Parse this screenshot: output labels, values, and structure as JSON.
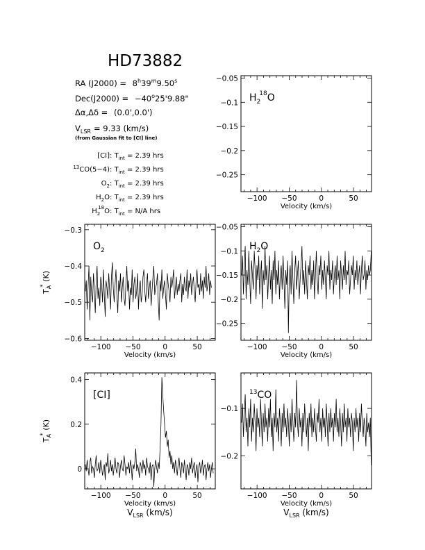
{
  "header": {
    "title": "HD73882",
    "ra_label": "RA (J2000) =",
    "ra_h": "8",
    "ra_m": "39",
    "ra_s": "9.50",
    "dec_label": "Dec(J2000) =",
    "dec_deg": "−40",
    "dec_arcmin": "25'",
    "dec_arcsec": "9.88\"",
    "offset_label": "Δα,Δδ =",
    "offset_value": "(0.0',0.0')",
    "vlsr_label": "V",
    "vlsr_sub": "LSR",
    "vlsr_value": "= 9.33 (km/s)",
    "vlsr_note": "(from Gaussian fit to [CI] line)",
    "tint_label": "T",
    "tint_sub": "int",
    "integrations": [
      {
        "prefix": "",
        "line": "[CI]",
        "sup": "",
        "value": "= 2.39 hrs"
      },
      {
        "prefix": "13",
        "line": "CO(5−4)",
        "sup": "",
        "value": "= 2.39 hrs"
      },
      {
        "prefix": "",
        "line": "O",
        "sub": "2",
        "value": "= 2.39 hrs"
      },
      {
        "prefix": "",
        "line": "H",
        "sub": "2",
        "post": "O",
        "value": "= 2.39 hrs"
      },
      {
        "prefix": "",
        "line": "H",
        "sub": "2",
        "sup": "18",
        "post": "O",
        "value": "= N/A hrs"
      }
    ]
  },
  "axis_text": {
    "velocity": "Velocity (km/s)",
    "vlsr_main": "V",
    "vlsr_sub": "LSR",
    "vlsr_units": "(km/s)",
    "ta_main": "T",
    "ta_sub": "A",
    "ta_sup": "*",
    "ta_units": "(K)"
  },
  "chart_data": [
    {
      "id": "h218o",
      "type": "line",
      "label_main": "H",
      "label_sub": "2",
      "label_sup": "18",
      "label_post": "O",
      "xlim": [
        -125,
        78
      ],
      "ylim": [
        -0.285,
        -0.045
      ],
      "xticks": [
        -100,
        -50,
        0,
        50
      ],
      "xtick_labels": [
        "−100",
        "−50",
        "0",
        "50"
      ],
      "yticks": [
        -0.05,
        -0.1,
        -0.15,
        -0.2,
        -0.25
      ],
      "ytick_labels": [
        "−0.05",
        "−0.1",
        "−0.15",
        "−0.2",
        "−0.25"
      ],
      "xlabel": "Velocity (km/s)",
      "ylabel": "",
      "series": []
    },
    {
      "id": "o2",
      "type": "line",
      "label_main": "O",
      "label_sub": "2",
      "xlim": [
        -125,
        78
      ],
      "ylim": [
        -0.605,
        -0.285
      ],
      "xticks": [
        -100,
        -50,
        0,
        50
      ],
      "xtick_labels": [
        "−100",
        "−50",
        "0",
        "50"
      ],
      "yticks": [
        -0.3,
        -0.4,
        -0.5,
        -0.6
      ],
      "ytick_labels": [
        "−0.3",
        "−0.4",
        "−0.5",
        "−0.6"
      ],
      "xlabel": "Velocity (km/s)",
      "ylabel": "T_A* (K)",
      "series": [
        {
          "x_start": -124,
          "x_step": 1.4,
          "values": [
            -0.47,
            -0.44,
            -0.52,
            -0.46,
            -0.4,
            -0.55,
            -0.43,
            -0.48,
            -0.5,
            -0.42,
            -0.47,
            -0.53,
            -0.44,
            -0.4,
            -0.49,
            -0.46,
            -0.51,
            -0.43,
            -0.45,
            -0.5,
            -0.41,
            -0.48,
            -0.54,
            -0.44,
            -0.46,
            -0.49,
            -0.42,
            -0.47,
            -0.52,
            -0.43,
            -0.39,
            -0.46,
            -0.5,
            -0.45,
            -0.41,
            -0.48,
            -0.53,
            -0.44,
            -0.47,
            -0.42,
            -0.5,
            -0.46,
            -0.43,
            -0.49,
            -0.51,
            -0.45,
            -0.4,
            -0.47,
            -0.44,
            -0.52,
            -0.46,
            -0.48,
            -0.41,
            -0.5,
            -0.45,
            -0.43,
            -0.49,
            -0.47,
            -0.42,
            -0.52,
            -0.46,
            -0.44,
            -0.5,
            -0.48,
            -0.43,
            -0.41,
            -0.47,
            -0.5,
            -0.45,
            -0.42,
            -0.49,
            -0.46,
            -0.44,
            -0.51,
            -0.47,
            -0.43,
            -0.4,
            -0.48,
            -0.46,
            -0.45,
            -0.42,
            -0.5,
            -0.55,
            -0.44,
            -0.47,
            -0.41,
            -0.49,
            -0.46,
            -0.44,
            -0.48,
            -0.52,
            -0.42,
            -0.45,
            -0.47,
            -0.5,
            -0.43,
            -0.46,
            -0.44,
            -0.41,
            -0.49,
            -0.46,
            -0.43,
            -0.48,
            -0.45,
            -0.47,
            -0.44,
            -0.42,
            -0.5,
            -0.45,
            -0.48,
            -0.43,
            -0.46,
            -0.47,
            -0.41,
            -0.49,
            -0.44,
            -0.46,
            -0.42,
            -0.48,
            -0.45,
            -0.43,
            -0.47,
            -0.5,
            -0.44,
            -0.41,
            -0.46,
            -0.45,
            -0.48,
            -0.42,
            -0.47,
            -0.44,
            -0.49,
            -0.43,
            -0.46,
            -0.4,
            -0.47,
            -0.45,
            -0.42,
            -0.48,
            -0.44,
            -0.46
          ]
        }
      ]
    },
    {
      "id": "h2o",
      "type": "line",
      "label_main": "H",
      "label_sub": "2",
      "label_post": "O",
      "xlim": [
        -125,
        78
      ],
      "ylim": [
        -0.285,
        -0.045
      ],
      "xticks": [
        -100,
        -50,
        0,
        50
      ],
      "xtick_labels": [
        "−100",
        "−50",
        "0",
        "50"
      ],
      "yticks": [
        -0.05,
        -0.1,
        -0.15,
        -0.2,
        -0.25
      ],
      "ytick_labels": [
        "−0.05",
        "−0.1",
        "−0.15",
        "−0.2",
        "−0.25"
      ],
      "xlabel": "Velocity (km/s)",
      "ylabel": "",
      "series": [
        {
          "x_start": -124,
          "x_step": 1.4,
          "values": [
            -0.15,
            -0.11,
            -0.19,
            -0.13,
            -0.09,
            -0.2,
            -0.14,
            -0.17,
            -0.1,
            -0.16,
            -0.21,
            -0.12,
            -0.15,
            -0.18,
            -0.1,
            -0.14,
            -0.2,
            -0.13,
            -0.16,
            -0.11,
            -0.19,
            -0.15,
            -0.12,
            -0.22,
            -0.14,
            -0.17,
            -0.09,
            -0.16,
            -0.13,
            -0.2,
            -0.15,
            -0.11,
            -0.18,
            -0.14,
            -0.21,
            -0.12,
            -0.16,
            -0.1,
            -0.19,
            -0.14,
            -0.17,
            -0.12,
            -0.2,
            -0.15,
            -0.13,
            -0.18,
            -0.11,
            -0.16,
            -0.22,
            -0.14,
            -0.17,
            -0.12,
            -0.27,
            -0.15,
            -0.13,
            -0.19,
            -0.1,
            -0.16,
            -0.21,
            -0.14,
            -0.11,
            -0.18,
            -0.15,
            -0.12,
            -0.2,
            -0.16,
            -0.13,
            -0.09,
            -0.17,
            -0.14,
            -0.19,
            -0.12,
            -0.16,
            -0.2,
            -0.13,
            -0.15,
            -0.11,
            -0.18,
            -0.14,
            -0.17,
            -0.12,
            -0.2,
            -0.15,
            -0.1,
            -0.16,
            -0.19,
            -0.13,
            -0.15,
            -0.11,
            -0.18,
            -0.14,
            -0.17,
            -0.12,
            -0.16,
            -0.2,
            -0.13,
            -0.15,
            -0.1,
            -0.18,
            -0.14,
            -0.16,
            -0.12,
            -0.19,
            -0.15,
            -0.13,
            -0.17,
            -0.11,
            -0.16,
            -0.14,
            -0.2,
            -0.12,
            -0.15,
            -0.18,
            -0.13,
            -0.16,
            -0.1,
            -0.17,
            -0.14,
            -0.15,
            -0.12,
            -0.19,
            -0.16,
            -0.13,
            -0.15,
            -0.11,
            -0.18,
            -0.14,
            -0.16,
            -0.12,
            -0.17,
            -0.15,
            -0.13,
            -0.19,
            -0.14,
            -0.11,
            -0.16,
            -0.15,
            -0.12,
            -0.18,
            -0.14,
            -0.16,
            -0.13,
            -0.15,
            -0.14,
            -0.1
          ]
        }
      ]
    },
    {
      "id": "ci",
      "type": "line",
      "label_main": "[CI]",
      "xlim": [
        -125,
        78
      ],
      "ylim": [
        -0.09,
        0.43
      ],
      "xticks": [
        -100,
        -50,
        0,
        50
      ],
      "xtick_labels": [
        "−100",
        "−50",
        "0",
        "50"
      ],
      "yticks": [
        0,
        0.2,
        0.4
      ],
      "ytick_labels": [
        "0",
        "0.2",
        "0.4"
      ],
      "xlabel": "Velocity (km/s)",
      "ylabel": "T_A* (K)",
      "series": [
        {
          "x_start": -124,
          "x_step": 1.4,
          "values": [
            0.02,
            -0.01,
            0.04,
            0.0,
            -0.03,
            0.03,
            0.05,
            -0.02,
            0.01,
            0.0,
            -0.04,
            0.02,
            0.06,
            -0.01,
            0.0,
            0.03,
            -0.02,
            0.04,
            0.01,
            -0.03,
            0.0,
            0.02,
            -0.05,
            0.03,
            0.01,
            0.07,
            -0.02,
            0.0,
            0.04,
            -0.01,
            0.02,
            -0.03,
            0.01,
            0.05,
            0.0,
            -0.02,
            0.03,
            0.02,
            -0.04,
            0.01,
            0.04,
            0.0,
            -0.01,
            0.06,
            0.02,
            -0.03,
            0.01,
            0.0,
            0.03,
            -0.02,
            0.04,
            0.01,
            -0.05,
            0.02,
            0.0,
            0.03,
            0.09,
            -0.01,
            0.02,
            0.0,
            -0.04,
            0.03,
            0.01,
            -0.02,
            0.04,
            0.0,
            0.02,
            -0.03,
            0.05,
            0.01,
            0.0,
            -0.02,
            0.03,
            -0.05,
            0.01,
            0.02,
            -0.08,
            0.0,
            0.04,
            0.01,
            -0.02,
            0.03,
            0.0,
            0.09,
            0.2,
            0.41,
            0.33,
            0.26,
            0.2,
            0.14,
            0.17,
            0.1,
            0.13,
            0.05,
            0.08,
            0.02,
            0.06,
            0.0,
            0.03,
            -0.02,
            0.04,
            0.01,
            -0.03,
            0.02,
            0.05,
            0.0,
            -0.04,
            0.03,
            0.01,
            -0.02,
            0.04,
            0.0,
            -0.05,
            0.02,
            0.01,
            -0.03,
            0.03,
            0.0,
            0.05,
            -0.02,
            0.01,
            0.03,
            -0.04,
            0.0,
            0.02,
            -0.06,
            0.01,
            0.03,
            -0.02,
            0.0,
            0.04,
            -0.03,
            0.01,
            0.02,
            -0.05,
            0.0,
            0.03,
            -0.01,
            0.02,
            -0.04,
            0.0,
            0.03,
            -0.02
          ]
        }
      ]
    },
    {
      "id": "13co",
      "type": "line",
      "label_main": "CO",
      "label_pre": "13",
      "xlim": [
        -125,
        78
      ],
      "ylim": [
        -0.27,
        -0.025
      ],
      "xticks": [
        -100,
        -50,
        0,
        50
      ],
      "xtick_labels": [
        "−100",
        "−50",
        "0",
        "50"
      ],
      "yticks": [
        -0.1,
        -0.2
      ],
      "ytick_labels": [
        "−0.1",
        "−0.2"
      ],
      "xlabel": "Velocity (km/s)",
      "ylabel": "",
      "series": [
        {
          "x_start": -124,
          "x_step": 1.4,
          "values": [
            -0.13,
            -0.09,
            -0.16,
            -0.11,
            -0.07,
            -0.15,
            -0.12,
            -0.18,
            -0.1,
            -0.14,
            -0.08,
            -0.17,
            -0.12,
            -0.15,
            -0.09,
            -0.13,
            -0.19,
            -0.1,
            -0.14,
            -0.12,
            -0.16,
            -0.08,
            -0.13,
            -0.18,
            -0.11,
            -0.15,
            -0.09,
            -0.14,
            -0.12,
            -0.17,
            -0.1,
            -0.14,
            -0.08,
            -0.16,
            -0.12,
            -0.19,
            -0.11,
            -0.14,
            -0.06,
            -0.15,
            -0.12,
            -0.17,
            -0.1,
            -0.13,
            -0.18,
            -0.11,
            -0.15,
            -0.09,
            -0.14,
            -0.12,
            -0.16,
            -0.1,
            -0.13,
            -0.18,
            -0.11,
            -0.15,
            -0.08,
            -0.13,
            -0.17,
            -0.11,
            -0.14,
            -0.04,
            -0.13,
            -0.16,
            -0.1,
            -0.14,
            -0.12,
            -0.18,
            -0.11,
            -0.15,
            -0.09,
            -0.13,
            -0.16,
            -0.12,
            -0.19,
            -0.11,
            -0.14,
            -0.09,
            -0.16,
            -0.12,
            -0.15,
            -0.1,
            -0.14,
            -0.17,
            -0.11,
            -0.13,
            -0.08,
            -0.15,
            -0.12,
            -0.17,
            -0.1,
            -0.14,
            -0.12,
            -0.16,
            -0.09,
            -0.13,
            -0.18,
            -0.11,
            -0.15,
            -0.1,
            -0.14,
            -0.12,
            -0.17,
            -0.11,
            -0.14,
            -0.08,
            -0.15,
            -0.12,
            -0.16,
            -0.1,
            -0.13,
            -0.18,
            -0.11,
            -0.15,
            -0.09,
            -0.14,
            -0.12,
            -0.17,
            -0.1,
            -0.14,
            -0.12,
            -0.16,
            -0.11,
            -0.13,
            -0.19,
            -0.12,
            -0.15,
            -0.1,
            -0.14,
            -0.12,
            -0.17,
            -0.11,
            -0.15,
            -0.09,
            -0.13,
            -0.16,
            -0.12,
            -0.14,
            -0.18,
            -0.11,
            -0.15,
            -0.13,
            -0.16,
            -0.12,
            -0.22
          ]
        }
      ]
    }
  ]
}
